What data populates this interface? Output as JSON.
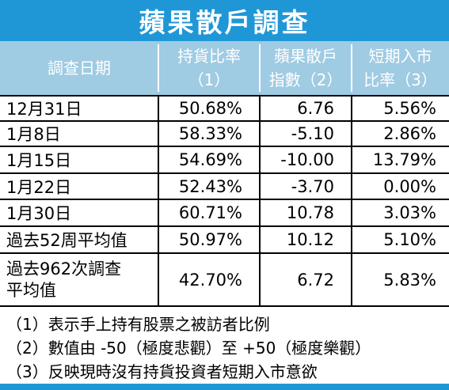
{
  "title": "蘋果散戶調查",
  "headers": [
    {
      "line1": "調查日期",
      "line2": ""
    },
    {
      "line1": "持貨比率",
      "line2": "（1）"
    },
    {
      "line1": "蘋果散戶",
      "line2": "指數（2）"
    },
    {
      "line1": "短期入市",
      "line2": "比率（3）"
    }
  ],
  "rows": [
    {
      "date": "12月31日",
      "holding": "50.68%",
      "index": "6.76",
      "entry": "5.56%"
    },
    {
      "date": "1月8日",
      "holding": "58.33%",
      "index": "-5.10",
      "entry": "2.86%"
    },
    {
      "date": "1月15日",
      "holding": "54.69%",
      "index": "-10.00",
      "entry": "13.79%"
    },
    {
      "date": "1月22日",
      "holding": "52.43%",
      "index": "-3.70",
      "entry": "0.00%"
    },
    {
      "date": "1月30日",
      "holding": "60.71%",
      "index": "10.78",
      "entry": "3.03%"
    },
    {
      "date": "過去52周平均值",
      "holding": "50.97%",
      "index": "10.12",
      "entry": "5.10%"
    },
    {
      "date_line1": "過去962次調查",
      "date_line2": "平均值",
      "holding": "42.70%",
      "index": "6.72",
      "entry": "5.83%"
    }
  ],
  "notes": [
    "（1）表示手上持有股票之被訪者比例",
    "（2）數值由 -50（極度悲觀）至 +50（極度樂觀）",
    "（3）反映現時沒有持貨投資者短期入市意欲"
  ],
  "colors": {
    "title_bg": "#1f97d6",
    "header_bg": "#9fcbe3"
  }
}
